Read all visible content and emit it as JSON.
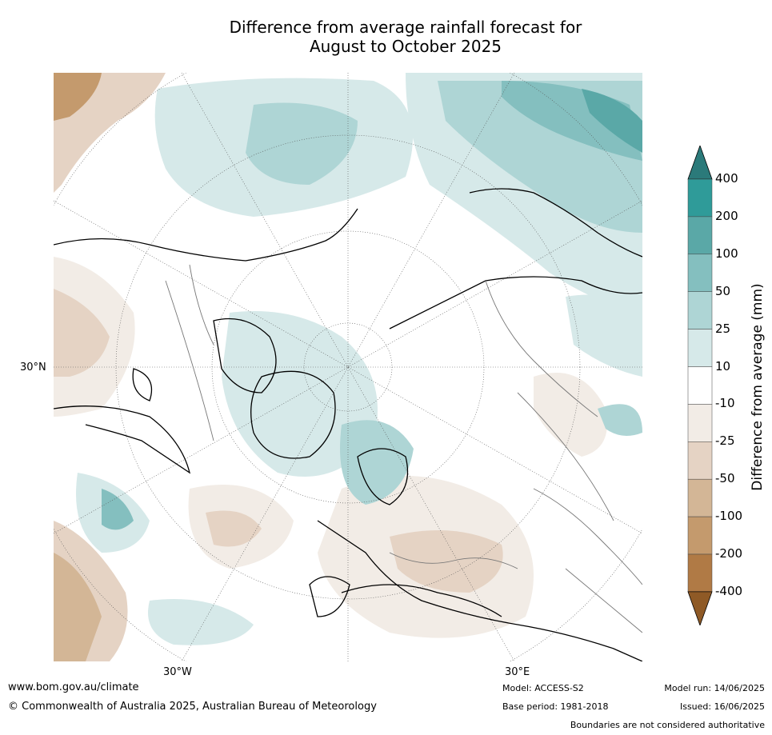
{
  "title": {
    "line1": "Difference from average rainfall forecast for",
    "line2": "August to October 2025"
  },
  "map": {
    "lat_label": "30°N",
    "lon_labels": [
      "30°W",
      "30°E"
    ]
  },
  "colorbar": {
    "title": "Difference from average (mm)",
    "ticks": [
      "400",
      "200",
      "100",
      "50",
      "25",
      "10",
      "-10",
      "-25",
      "-50",
      "-100",
      "-200",
      "-400"
    ],
    "colors": [
      "#2b7a7a",
      "#2f9b99",
      "#5aa8a7",
      "#84bfbf",
      "#aed5d5",
      "#d6e9e9",
      "#ffffff",
      "#f2ece6",
      "#e5d3c4",
      "#d3b696",
      "#c49a6d",
      "#b07a45",
      "#8f5a26"
    ]
  },
  "footer": {
    "website": "www.bom.gov.au/climate",
    "copyright": "© Commonwealth of Australia 2025, Australian Bureau of Meteorology",
    "model": "Model: ACCESS-S2",
    "base_period": "Base period: 1981-2018",
    "model_run": "Model run: 14/06/2025",
    "issued": "Issued: 16/06/2025",
    "disclaimer": "Boundaries are not considered authoritative"
  }
}
